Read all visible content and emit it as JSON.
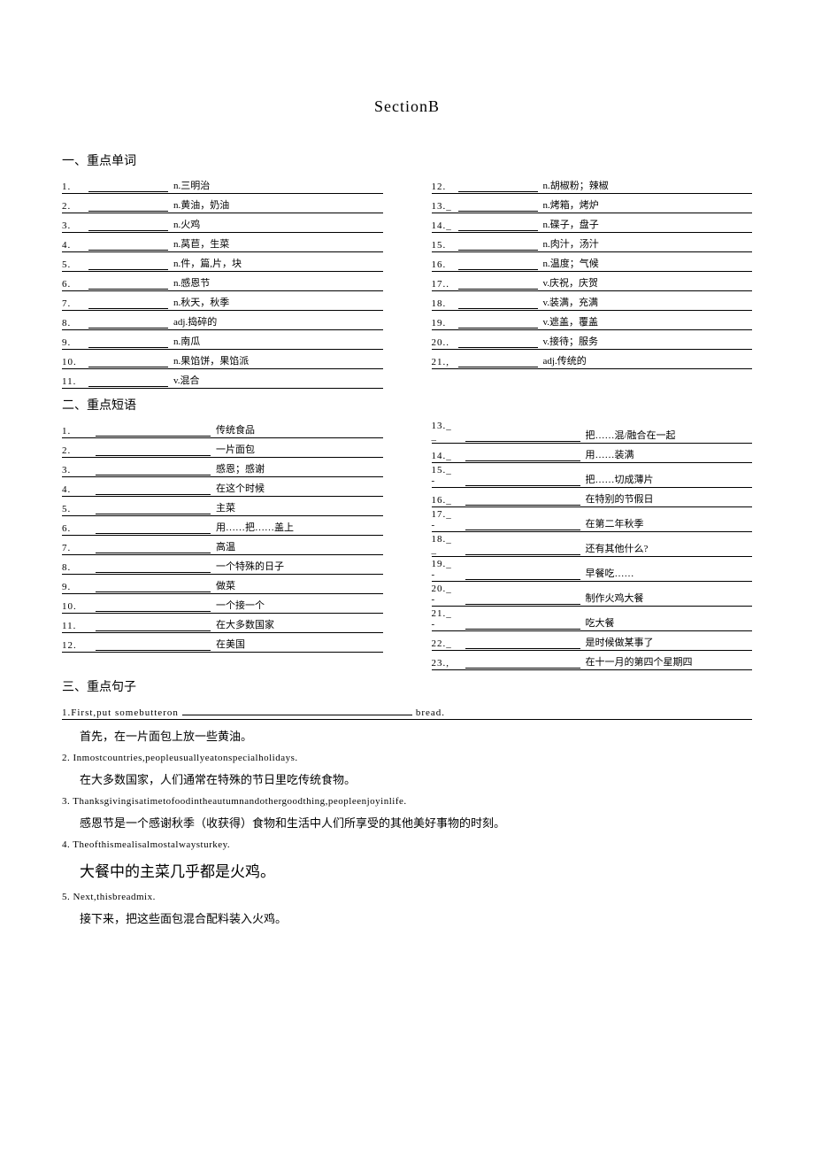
{
  "title": "SectionB",
  "headings": {
    "words": "一、重点单词",
    "phrases": "二、重点短语",
    "sentences": "三、重点句子"
  },
  "words_left": [
    {
      "n": "1.",
      "d": "n.三明治"
    },
    {
      "n": "2.",
      "d": "n.黄油，奶油"
    },
    {
      "n": "3.",
      "d": "n.火鸡"
    },
    {
      "n": "4.",
      "d": "n.莴苣，生菜"
    },
    {
      "n": "5.",
      "d": "n.件，篇,片，块"
    },
    {
      "n": "6.",
      "d": "n.感恩节"
    },
    {
      "n": "7.",
      "d": "n.秋天，秋季"
    },
    {
      "n": "8.",
      "d": "adj.捣碎的"
    },
    {
      "n": "9.",
      "d": "n.南瓜"
    },
    {
      "n": "10.",
      "d": "n.果馅饼，果馅派"
    },
    {
      "n": "11.",
      "d": "v.混合"
    }
  ],
  "words_right": [
    {
      "n": "12.",
      "d": "n.胡椒粉；辣椒"
    },
    {
      "n": "13._",
      "d": "n.烤箱，烤炉"
    },
    {
      "n": "14._",
      "d": "n.碟子，盘子"
    },
    {
      "n": "15.",
      "d": "n.肉汁，汤汁"
    },
    {
      "n": "16.",
      "d": "n.温度；气候"
    },
    {
      "n": "17..",
      "d": "v.庆祝，庆贺"
    },
    {
      "n": "18.",
      "d": "v.装满，充满"
    },
    {
      "n": "19.",
      "d": "v.遮盖，覆盖"
    },
    {
      "n": "20..",
      "d": "v.接待；服务"
    },
    {
      "n": "21.,",
      "d": "adj.传统的"
    }
  ],
  "phrases_left": [
    {
      "n": "1.",
      "d": "传统食品"
    },
    {
      "n": "2.",
      "d": "一片面包"
    },
    {
      "n": "3.",
      "d": "感恩；感谢"
    },
    {
      "n": "4.",
      "d": "在这个时候"
    },
    {
      "n": "5.",
      "d": "主菜"
    },
    {
      "n": "6.",
      "d": "用……把……盖上"
    },
    {
      "n": "7.",
      "d": "高温"
    },
    {
      "n": "8.",
      "d": "一个特殊的日子"
    },
    {
      "n": "9.",
      "d": "做菜"
    },
    {
      "n": "10.",
      "d": "一个接一个"
    },
    {
      "n": "11.",
      "d": "在大多数国家"
    },
    {
      "n": "12.",
      "d": "在美国"
    }
  ],
  "phrases_right": [
    {
      "n": "13._ _",
      "d": "把……混/融合在一起"
    },
    {
      "n": "14._",
      "d": "用……装满"
    },
    {
      "n": "15._ -",
      "d": "把……切成薄片"
    },
    {
      "n": "16._",
      "d": "在特别的节假日"
    },
    {
      "n": "17._ -",
      "d": "在第二年秋季"
    },
    {
      "n": "18._ _",
      "d": "还有其他什么?"
    },
    {
      "n": "19._ -",
      "d": "早餐吃……"
    },
    {
      "n": "20._ -",
      "d": "制作火鸡大餐"
    },
    {
      "n": "21._ -",
      "d": "吃大餐"
    },
    {
      "n": "22._",
      "d": "是时候做某事了"
    },
    {
      "n": "23.,",
      "d": "在十一月的第四个星期四"
    }
  ],
  "sentences": [
    {
      "en_pre": "1.First,put   somebutteron",
      "en_post": "bread.",
      "cn": "首先，在一片面包上放一些黄油。",
      "underlined": true
    },
    {
      "en": "2.  Inmostcountries,peopleusuallyeatonspecialholidays.",
      "cn": "在大多数国家，人们通常在特殊的节日里吃传统食物。"
    },
    {
      "en": "3.  Thanksgivingisatimetofoodintheautumnandothergoodthing,peopleenjoyinlife.",
      "cn": "感恩节是一个感谢秋季（收获得）食物和生活中人们所享受的其他美好事物的时刻。"
    },
    {
      "en": "4.  Theofthismealisalmostalwaysturkey.",
      "cn": "大餐中的主菜几乎都是火鸡。",
      "big": true
    },
    {
      "en": "5.  Next,thisbreadmix.",
      "cn": "接下来，把这些面包混合配料装入火鸡。"
    }
  ]
}
